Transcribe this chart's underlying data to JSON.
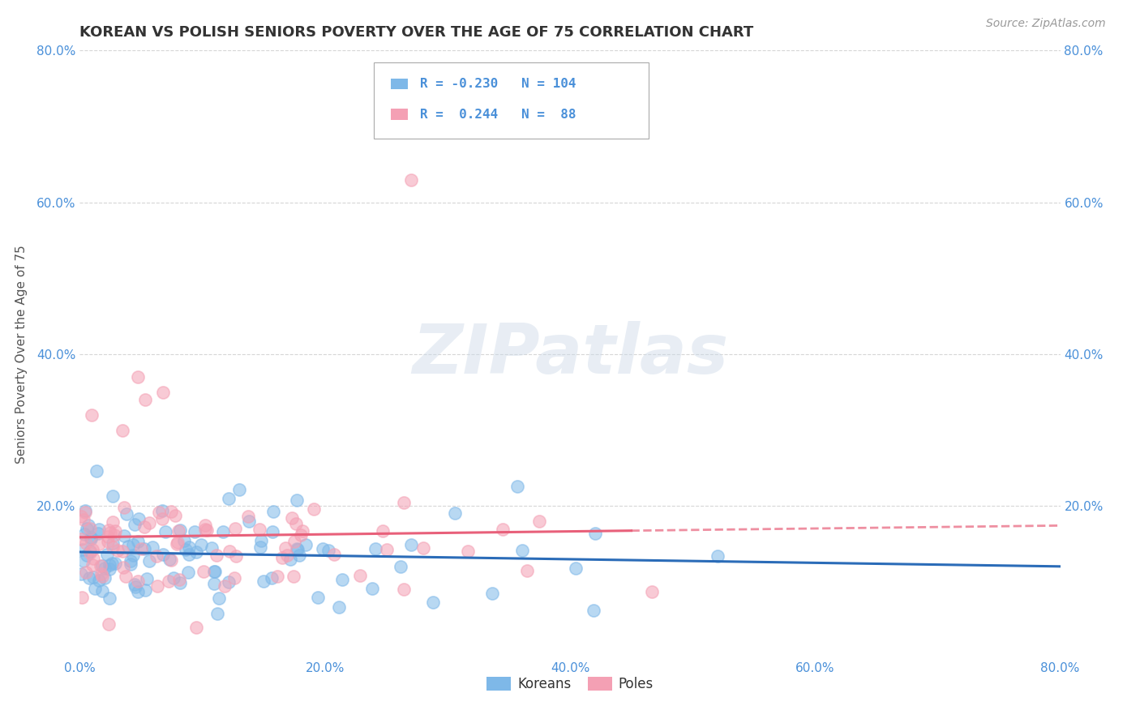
{
  "title": "KOREAN VS POLISH SENIORS POVERTY OVER THE AGE OF 75 CORRELATION CHART",
  "source": "Source: ZipAtlas.com",
  "ylabel": "Seniors Poverty Over the Age of 75",
  "xlim": [
    0.0,
    0.8
  ],
  "ylim": [
    0.0,
    0.8
  ],
  "xticks": [
    0.0,
    0.2,
    0.4,
    0.6,
    0.8
  ],
  "yticks": [
    0.0,
    0.2,
    0.4,
    0.6,
    0.8
  ],
  "xticklabels": [
    "0.0%",
    "20.0%",
    "40.0%",
    "60.0%",
    "80.0%"
  ],
  "yticklabels": [
    "",
    "20.0%",
    "40.0%",
    "60.0%",
    "80.0%"
  ],
  "korean_color": "#7EB8E8",
  "korean_line_color": "#2B6CB8",
  "polish_color": "#F4A0B4",
  "polish_line_color": "#E8607A",
  "korean_R": -0.23,
  "korean_N": 104,
  "polish_R": 0.244,
  "polish_N": 88,
  "background_color": "#ffffff",
  "grid_color": "#cccccc",
  "title_color": "#333333",
  "axis_label_color": "#555555",
  "tick_label_color": "#4a90d9",
  "legend_R_color": "#4a90d9",
  "watermark_text": "ZIPatlas",
  "legend_labels": [
    "Koreans",
    "Poles"
  ]
}
